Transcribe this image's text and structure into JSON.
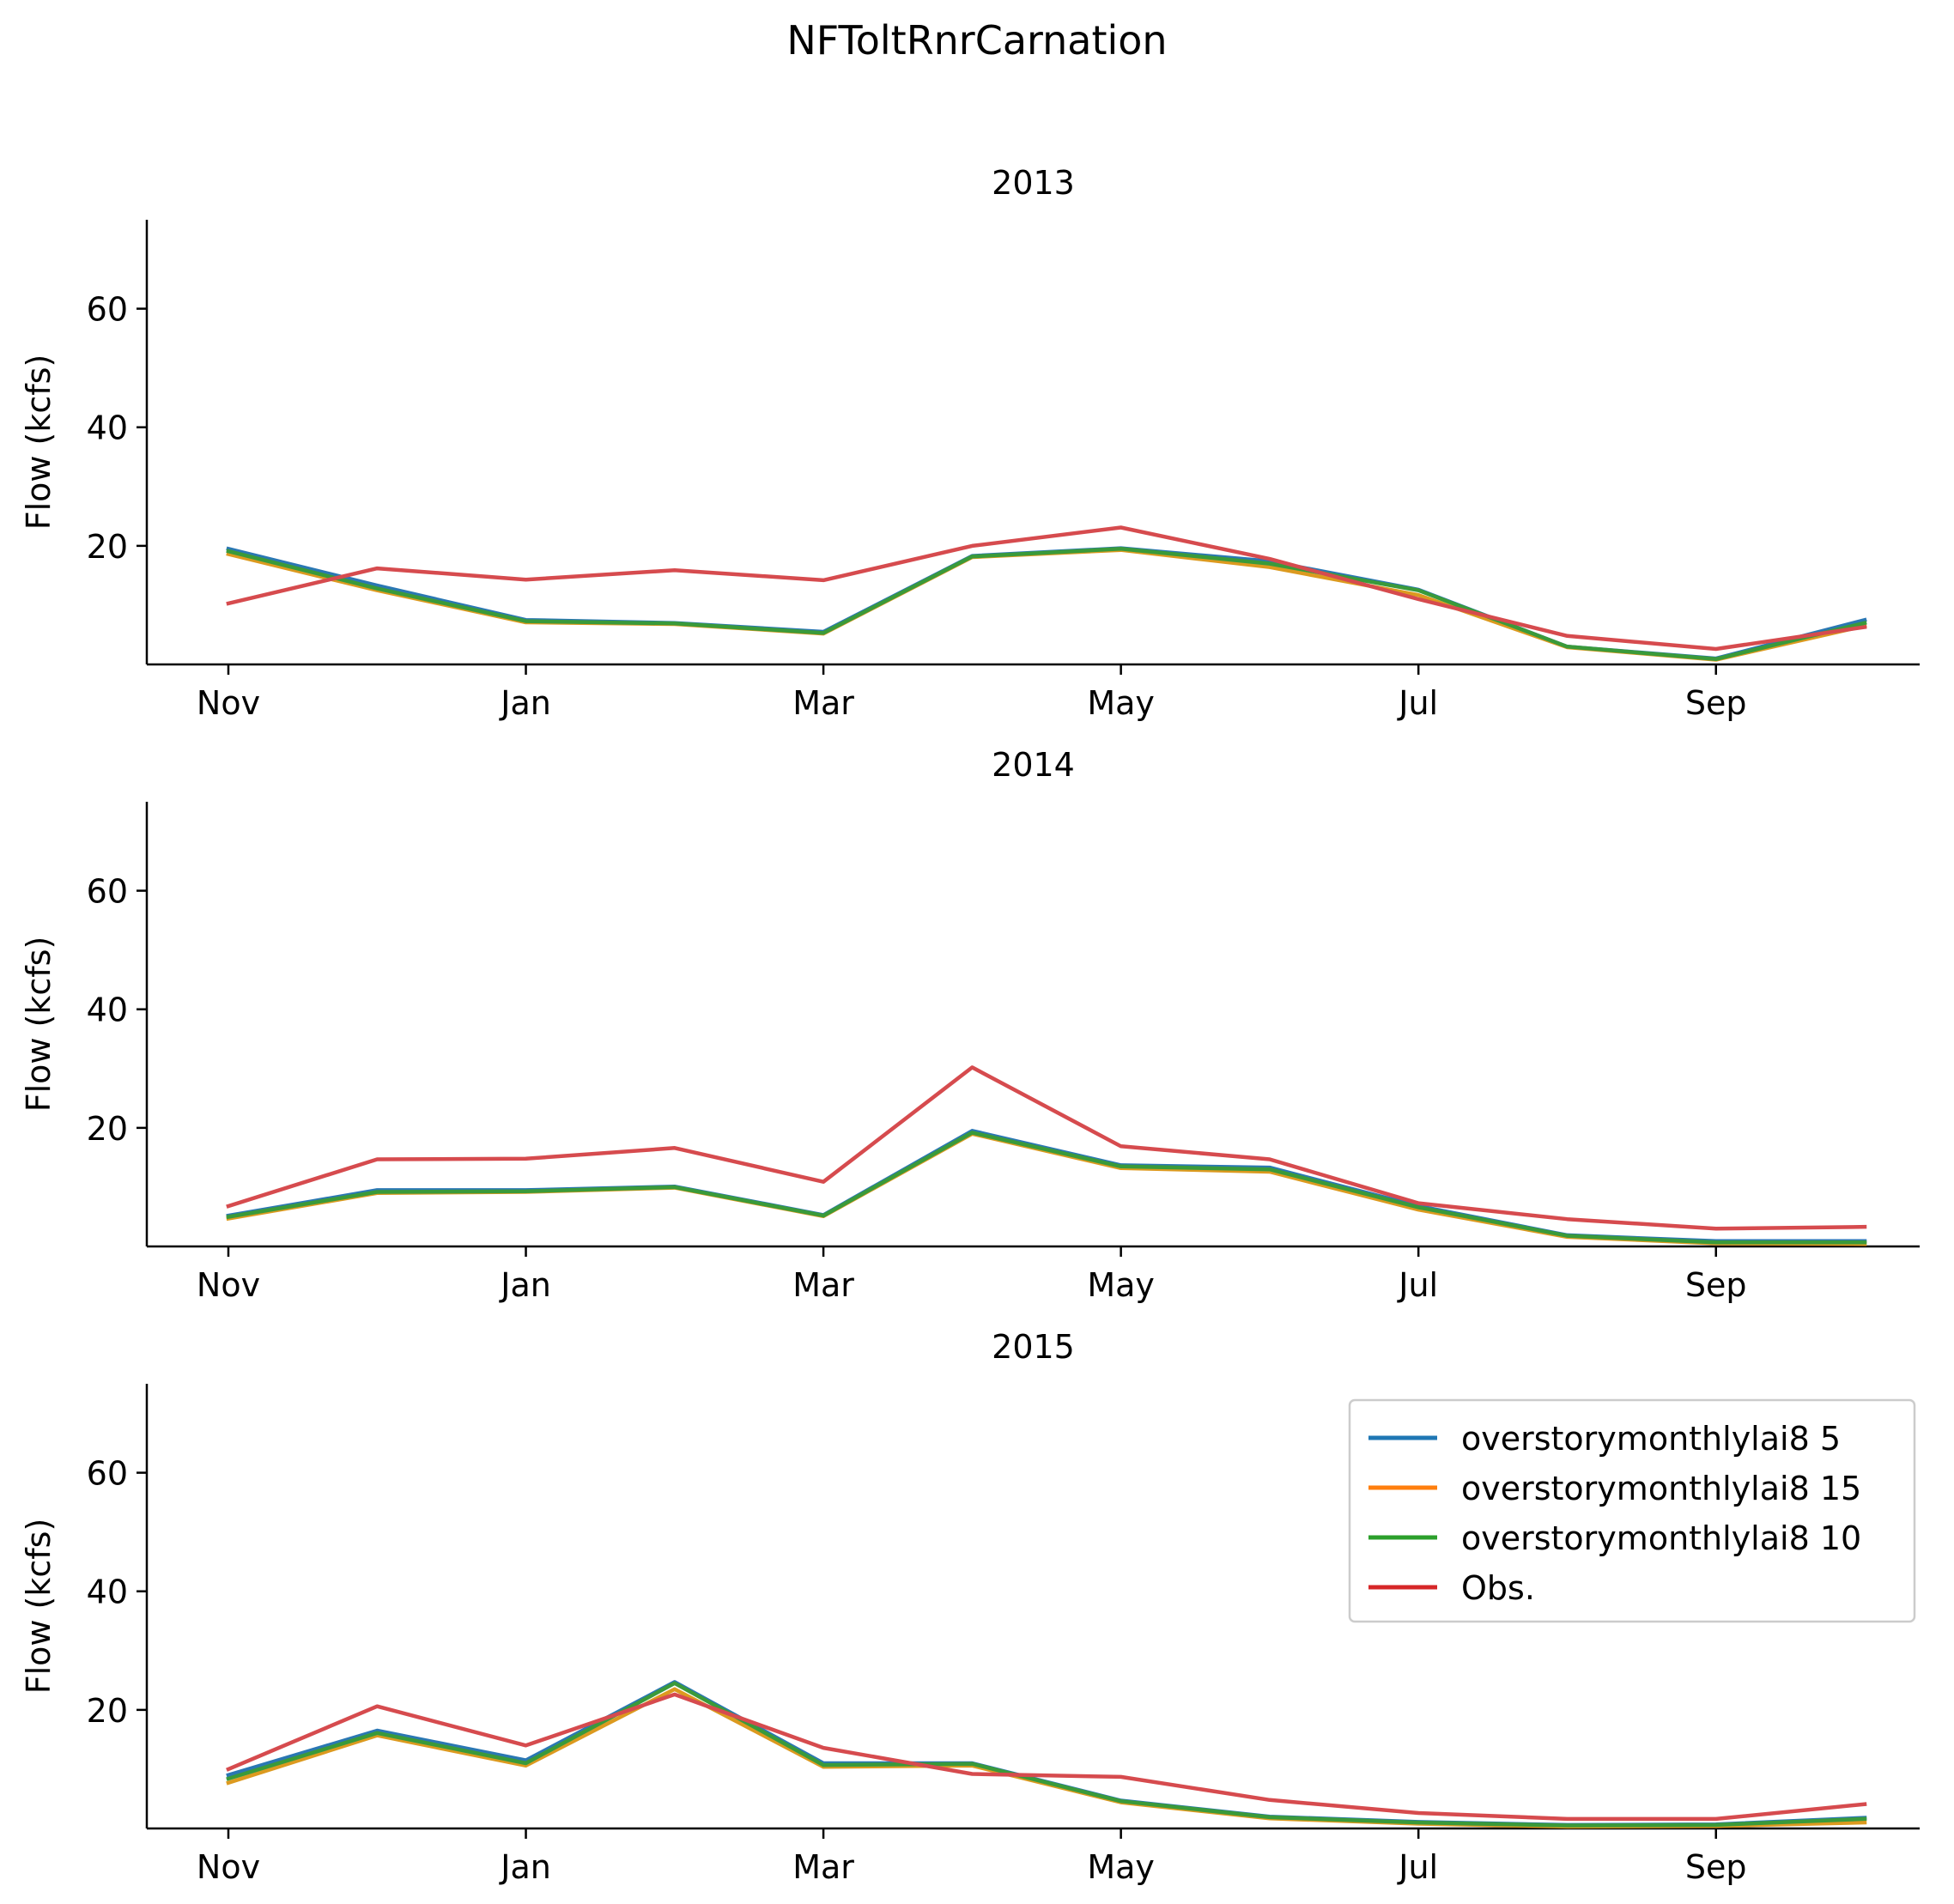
{
  "figure": {
    "title": "NFToltRnrCarnation"
  },
  "colors": {
    "overstorymonthlylai8 5": "#1f77b4",
    "overstorymonthlylai8 15": "#ff7f0e",
    "overstorymonthlylai8 10": "#2ca02c",
    "Obs.": "#d62728"
  },
  "chart_data": [
    {
      "type": "line",
      "title": "2013",
      "ylabel": "Flow (kcfs)",
      "xlabel": "",
      "x_ticks": [
        "Nov",
        "Jan",
        "Mar",
        "May",
        "Jul",
        "Sep"
      ],
      "x": [
        "Nov",
        "Dec",
        "Jan",
        "Feb",
        "Mar",
        "Apr",
        "May",
        "Jun",
        "Jul",
        "Aug",
        "Sep",
        "Oct"
      ],
      "ylim": [
        0,
        75
      ],
      "y_ticks": [
        20,
        40,
        60
      ],
      "series": [
        {
          "name": "overstorymonthlylai8 5",
          "values": [
            19.5,
            13.3,
            7.5,
            7.0,
            5.5,
            18.3,
            19.6,
            17.4,
            12.6,
            3.0,
            1.0,
            7.5
          ]
        },
        {
          "name": "overstorymonthlylai8 15",
          "values": [
            18.6,
            12.5,
            7.1,
            6.8,
            5.2,
            18.1,
            19.3,
            16.4,
            11.7,
            2.9,
            0.8,
            6.5
          ]
        },
        {
          "name": "overstorymonthlylai8 10",
          "values": [
            19.1,
            12.8,
            7.3,
            6.9,
            5.3,
            18.2,
            19.5,
            17.0,
            12.5,
            3.0,
            0.9,
            7.0
          ]
        },
        {
          "name": "Obs.",
          "values": [
            10.3,
            16.2,
            14.3,
            15.9,
            14.2,
            20.0,
            23.1,
            17.8,
            11.0,
            4.8,
            2.6,
            6.3
          ]
        }
      ]
    },
    {
      "type": "line",
      "title": "2014",
      "ylabel": "Flow (kcfs)",
      "xlabel": "",
      "x_ticks": [
        "Nov",
        "Jan",
        "Mar",
        "May",
        "Jul",
        "Sep"
      ],
      "x": [
        "Nov",
        "Dec",
        "Jan",
        "Feb",
        "Mar",
        "Apr",
        "May",
        "Jun",
        "Jul",
        "Aug",
        "Sep",
        "Oct"
      ],
      "ylim": [
        0,
        75
      ],
      "y_ticks": [
        20,
        40,
        60
      ],
      "series": [
        {
          "name": "overstorymonthlylai8 5",
          "values": [
            5.2,
            9.5,
            9.5,
            10.1,
            5.3,
            19.5,
            13.7,
            13.3,
            6.8,
            1.9,
            0.9,
            0.9
          ]
        },
        {
          "name": "overstorymonthlylai8 15",
          "values": [
            4.7,
            9.0,
            9.2,
            9.9,
            5.1,
            19.0,
            13.2,
            12.6,
            6.2,
            1.6,
            0.5,
            0.4
          ]
        },
        {
          "name": "overstorymonthlylai8 10",
          "values": [
            5.0,
            9.2,
            9.3,
            10.0,
            5.2,
            19.2,
            13.5,
            13.0,
            6.6,
            1.8,
            0.7,
            0.7
          ]
        },
        {
          "name": "Obs.",
          "values": [
            6.8,
            14.7,
            14.8,
            16.6,
            10.9,
            30.2,
            16.9,
            14.7,
            7.3,
            4.6,
            3.0,
            3.3
          ]
        }
      ]
    },
    {
      "type": "line",
      "title": "2015",
      "ylabel": "Flow (kcfs)",
      "xlabel": "",
      "x_ticks": [
        "Nov",
        "Jan",
        "Mar",
        "May",
        "Jul",
        "Sep"
      ],
      "x": [
        "Nov",
        "Dec",
        "Jan",
        "Feb",
        "Mar",
        "Apr",
        "May",
        "Jun",
        "Jul",
        "Aug",
        "Sep",
        "Oct"
      ],
      "ylim": [
        0,
        75
      ],
      "y_ticks": [
        20,
        40,
        60
      ],
      "legend": {
        "location": "upper right"
      },
      "series": [
        {
          "name": "overstorymonthlylai8 5",
          "values": [
            9.0,
            16.5,
            11.5,
            24.7,
            11.0,
            11.0,
            4.7,
            2.0,
            1.1,
            0.6,
            0.7,
            1.8
          ]
        },
        {
          "name": "overstorymonthlylai8 15",
          "values": [
            7.7,
            15.7,
            10.6,
            23.5,
            10.4,
            10.6,
            4.4,
            1.7,
            0.8,
            0.3,
            0.4,
            1.0
          ]
        },
        {
          "name": "overstorymonthlylai8 10",
          "values": [
            8.4,
            16.1,
            11.0,
            24.5,
            10.7,
            10.9,
            4.6,
            1.9,
            1.0,
            0.5,
            0.6,
            1.6
          ]
        },
        {
          "name": "Obs.",
          "values": [
            10.0,
            20.6,
            14.0,
            22.6,
            13.6,
            9.2,
            8.7,
            4.8,
            2.6,
            1.6,
            1.6,
            4.1
          ]
        }
      ]
    }
  ]
}
